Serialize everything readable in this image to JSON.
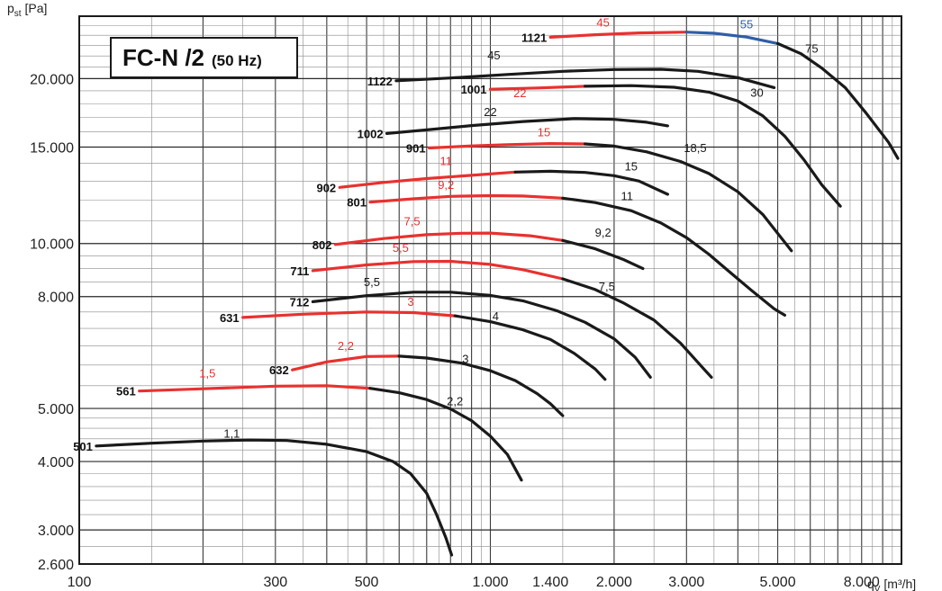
{
  "chart_data": {
    "type": "line",
    "title": "FC-N /2",
    "subtitle": "(50 Hz)",
    "xlabel": "q",
    "xlabel_sub": "V",
    "xlabel_unit": " [m³/h]",
    "ylabel": "p",
    "ylabel_sub": "st",
    "ylabel_unit": " [Pa]",
    "x_scale": "log",
    "y_scale": "log",
    "xlim": [
      100,
      10000
    ],
    "ylim": [
      2600,
      26000
    ],
    "grid": true,
    "x_ticks": [
      {
        "v": 100,
        "t": "100"
      },
      {
        "v": 300,
        "t": "300"
      },
      {
        "v": 500,
        "t": "500"
      },
      {
        "v": 1000,
        "t": "1.000"
      },
      {
        "v": 1400,
        "t": "1.400"
      },
      {
        "v": 2000,
        "t": "2.000"
      },
      {
        "v": 3000,
        "t": "3.000"
      },
      {
        "v": 5000,
        "t": "5.000"
      },
      {
        "v": 8000,
        "t": "8.000"
      }
    ],
    "y_ticks": [
      {
        "v": 2600,
        "t": "2.600"
      },
      {
        "v": 3000,
        "t": "3.000"
      },
      {
        "v": 4000,
        "t": "4.000"
      },
      {
        "v": 5000,
        "t": "5.000"
      },
      {
        "v": 8000,
        "t": "8.000"
      },
      {
        "v": 10000,
        "t": "10.000"
      },
      {
        "v": 15000,
        "t": "15.000"
      },
      {
        "v": 20000,
        "t": "20.000"
      }
    ],
    "colors": {
      "red": "#e8312f",
      "black": "#1a1a1a",
      "blue": "#2f5ea8"
    },
    "series": [
      {
        "name": "501",
        "points": [
          [
            110,
            4270
          ],
          [
            150,
            4320
          ],
          [
            200,
            4360
          ],
          [
            260,
            4380
          ],
          [
            320,
            4370
          ],
          [
            400,
            4300
          ],
          [
            500,
            4170
          ],
          [
            580,
            4000
          ],
          [
            640,
            3800
          ],
          [
            700,
            3500
          ],
          [
            740,
            3200
          ],
          [
            780,
            2900
          ],
          [
            805,
            2700
          ]
        ],
        "segments": [
          {
            "from": 0,
            "to": 12,
            "color": "black"
          }
        ],
        "motors": [
          {
            "t": "1,1",
            "x": 235,
            "y": 4420,
            "color": "black"
          }
        ]
      },
      {
        "name": "561",
        "points": [
          [
            140,
            5380
          ],
          [
            200,
            5430
          ],
          [
            300,
            5490
          ],
          [
            400,
            5500
          ],
          [
            510,
            5440
          ],
          [
            600,
            5340
          ],
          [
            700,
            5190
          ],
          [
            800,
            4990
          ],
          [
            900,
            4750
          ],
          [
            1000,
            4450
          ],
          [
            1100,
            4120
          ],
          [
            1190,
            3700
          ]
        ],
        "segments": [
          {
            "from": 0,
            "to": 4,
            "color": "red"
          },
          {
            "from": 4,
            "to": 11,
            "color": "black"
          }
        ],
        "motors": [
          {
            "t": "1,5",
            "x": 205,
            "y": 5700,
            "color": "red"
          },
          {
            "t": "2,2",
            "x": 820,
            "y": 5070,
            "color": "black"
          }
        ]
      },
      {
        "name": "632",
        "points": [
          [
            330,
            5880
          ],
          [
            400,
            6080
          ],
          [
            500,
            6220
          ],
          [
            600,
            6230
          ],
          [
            700,
            6180
          ],
          [
            850,
            6050
          ],
          [
            1000,
            5860
          ],
          [
            1150,
            5620
          ],
          [
            1300,
            5320
          ],
          [
            1400,
            5100
          ],
          [
            1500,
            4850
          ]
        ],
        "segments": [
          {
            "from": 0,
            "to": 3,
            "color": "red"
          },
          {
            "from": 3,
            "to": 10,
            "color": "black"
          }
        ],
        "motors": [
          {
            "t": "2,2",
            "x": 445,
            "y": 6400,
            "color": "red"
          },
          {
            "t": "3",
            "x": 870,
            "y": 6050,
            "color": "black"
          }
        ]
      },
      {
        "name": "631",
        "points": [
          [
            250,
            7330
          ],
          [
            350,
            7430
          ],
          [
            500,
            7500
          ],
          [
            650,
            7480
          ],
          [
            820,
            7380
          ],
          [
            1000,
            7200
          ],
          [
            1200,
            6960
          ],
          [
            1400,
            6680
          ],
          [
            1600,
            6300
          ],
          [
            1800,
            5900
          ],
          [
            1900,
            5650
          ]
        ],
        "segments": [
          {
            "from": 0,
            "to": 4,
            "color": "red"
          },
          {
            "from": 4,
            "to": 10,
            "color": "black"
          }
        ],
        "motors": [
          {
            "t": "3",
            "x": 640,
            "y": 7700,
            "color": "red"
          },
          {
            "t": "4",
            "x": 1030,
            "y": 7250,
            "color": "black"
          }
        ]
      },
      {
        "name": "712",
        "points": [
          [
            370,
            7830
          ],
          [
            500,
            8030
          ],
          [
            650,
            8150
          ],
          [
            800,
            8150
          ],
          [
            1000,
            8040
          ],
          [
            1200,
            7860
          ],
          [
            1450,
            7540
          ],
          [
            1700,
            7180
          ],
          [
            2000,
            6700
          ],
          [
            2250,
            6200
          ],
          [
            2450,
            5700
          ]
        ],
        "segments": [
          {
            "from": 0,
            "to": 10,
            "color": "black"
          }
        ],
        "motors": [
          {
            "t": "5,5",
            "x": 515,
            "y": 8360,
            "color": "black"
          }
        ]
      },
      {
        "name": "711",
        "points": [
          [
            370,
            8920
          ],
          [
            500,
            9140
          ],
          [
            650,
            9270
          ],
          [
            800,
            9280
          ],
          [
            1000,
            9160
          ],
          [
            1200,
            8960
          ],
          [
            1500,
            8620
          ],
          [
            1800,
            8240
          ],
          [
            2100,
            7800
          ],
          [
            2500,
            7250
          ],
          [
            2900,
            6580
          ],
          [
            3300,
            5910
          ],
          [
            3450,
            5700
          ]
        ],
        "segments": [
          {
            "from": 0,
            "to": 6,
            "color": "red"
          },
          {
            "from": 6,
            "to": 12,
            "color": "black"
          }
        ],
        "motors": [
          {
            "t": "5,5",
            "x": 605,
            "y": 9650,
            "color": "red"
          },
          {
            "t": "7,5",
            "x": 1920,
            "y": 8200,
            "color": "black"
          }
        ]
      },
      {
        "name": "802",
        "points": [
          [
            420,
            9960
          ],
          [
            550,
            10210
          ],
          [
            700,
            10380
          ],
          [
            850,
            10440
          ],
          [
            1000,
            10450
          ],
          [
            1250,
            10330
          ],
          [
            1500,
            10130
          ],
          [
            1800,
            9780
          ],
          [
            2100,
            9360
          ],
          [
            2350,
            9000
          ]
        ],
        "segments": [
          {
            "from": 0,
            "to": 6,
            "color": "red"
          },
          {
            "from": 6,
            "to": 9,
            "color": "black"
          }
        ],
        "motors": [
          {
            "t": "7,5",
            "x": 645,
            "y": 10800,
            "color": "red"
          },
          {
            "t": "9,2",
            "x": 1880,
            "y": 10300,
            "color": "black"
          }
        ]
      },
      {
        "name": "801",
        "points": [
          [
            510,
            11900
          ],
          [
            650,
            12070
          ],
          [
            800,
            12190
          ],
          [
            1000,
            12230
          ],
          [
            1200,
            12210
          ],
          [
            1500,
            12100
          ],
          [
            1800,
            11880
          ],
          [
            2200,
            11480
          ],
          [
            2600,
            10900
          ],
          [
            3000,
            10250
          ],
          [
            3400,
            9560
          ],
          [
            3800,
            8900
          ],
          [
            4300,
            8230
          ],
          [
            4900,
            7600
          ],
          [
            5200,
            7400
          ]
        ],
        "segments": [
          {
            "from": 0,
            "to": 5,
            "color": "red"
          },
          {
            "from": 5,
            "to": 14,
            "color": "black"
          }
        ],
        "motors": [
          {
            "t": "9,2",
            "x": 780,
            "y": 12580,
            "color": "red"
          },
          {
            "t": "11",
            "x": 2150,
            "y": 12000,
            "color": "black"
          }
        ]
      },
      {
        "name": "902",
        "points": [
          [
            430,
            12660
          ],
          [
            550,
            12930
          ],
          [
            700,
            13140
          ],
          [
            900,
            13320
          ],
          [
            1150,
            13500
          ],
          [
            1400,
            13550
          ],
          [
            1700,
            13480
          ],
          [
            2000,
            13300
          ],
          [
            2300,
            13000
          ],
          [
            2700,
            12300
          ]
        ],
        "segments": [
          {
            "from": 0,
            "to": 4,
            "color": "red"
          },
          {
            "from": 4,
            "to": 9,
            "color": "black"
          }
        ],
        "motors": [
          {
            "t": "11",
            "x": 780,
            "y": 13900,
            "color": "red"
          },
          {
            "t": "15",
            "x": 2200,
            "y": 13600,
            "color": "black"
          }
        ]
      },
      {
        "name": "901",
        "points": [
          [
            710,
            14940
          ],
          [
            900,
            15070
          ],
          [
            1100,
            15150
          ],
          [
            1400,
            15220
          ],
          [
            1700,
            15200
          ],
          [
            2000,
            15060
          ],
          [
            2400,
            14700
          ],
          [
            2900,
            14120
          ],
          [
            3400,
            13420
          ],
          [
            4000,
            12430
          ],
          [
            4600,
            11300
          ],
          [
            5200,
            10050
          ],
          [
            5400,
            9700
          ]
        ],
        "segments": [
          {
            "from": 0,
            "to": 4,
            "color": "red"
          },
          {
            "from": 4,
            "to": 12,
            "color": "black"
          }
        ],
        "motors": [
          {
            "t": "15",
            "x": 1350,
            "y": 15700,
            "color": "red"
          },
          {
            "t": "18,5",
            "x": 3150,
            "y": 14700,
            "color": "black"
          }
        ]
      },
      {
        "name": "1002",
        "points": [
          [
            560,
            15880
          ],
          [
            700,
            16120
          ],
          [
            900,
            16420
          ],
          [
            1200,
            16700
          ],
          [
            1600,
            16900
          ],
          [
            2000,
            16850
          ],
          [
            2400,
            16650
          ],
          [
            2700,
            16400
          ]
        ],
        "segments": [
          {
            "from": 0,
            "to": 7,
            "color": "black"
          }
        ],
        "motors": [
          {
            "t": "22",
            "x": 1000,
            "y": 17100,
            "color": "black"
          }
        ]
      },
      {
        "name": "1001",
        "points": [
          [
            1000,
            19130
          ],
          [
            1300,
            19230
          ],
          [
            1700,
            19370
          ],
          [
            2200,
            19420
          ],
          [
            2800,
            19290
          ],
          [
            3400,
            18900
          ],
          [
            4000,
            18200
          ],
          [
            4600,
            17100
          ],
          [
            5200,
            15700
          ],
          [
            5800,
            14200
          ],
          [
            6400,
            12800
          ],
          [
            7100,
            11700
          ]
        ],
        "segments": [
          {
            "from": 0,
            "to": 2,
            "color": "red"
          },
          {
            "from": 2,
            "to": 11,
            "color": "black"
          }
        ],
        "motors": [
          {
            "t": "22",
            "x": 1180,
            "y": 18500,
            "color": "red"
          },
          {
            "t": "30",
            "x": 4450,
            "y": 18550,
            "color": "black"
          }
        ]
      },
      {
        "name": "1122",
        "points": [
          [
            590,
            19820
          ],
          [
            800,
            20050
          ],
          [
            1100,
            20350
          ],
          [
            1500,
            20620
          ],
          [
            2000,
            20780
          ],
          [
            2600,
            20800
          ],
          [
            3200,
            20620
          ],
          [
            4000,
            20080
          ],
          [
            4900,
            19260
          ]
        ],
        "segments": [
          {
            "from": 0,
            "to": 8,
            "color": "black"
          }
        ],
        "motors": [
          {
            "t": "45",
            "x": 1020,
            "y": 21700,
            "color": "black"
          }
        ]
      },
      {
        "name": "1121",
        "points": [
          [
            1400,
            23800
          ],
          [
            1800,
            24050
          ],
          [
            2300,
            24230
          ],
          [
            3000,
            24320
          ],
          [
            3500,
            24200
          ],
          [
            4200,
            23820
          ],
          [
            5000,
            23180
          ],
          [
            5700,
            22200
          ],
          [
            6400,
            20900
          ],
          [
            7300,
            19250
          ],
          [
            8200,
            17300
          ],
          [
            9300,
            15300
          ],
          [
            9800,
            14300
          ]
        ],
        "segments": [
          {
            "from": 0,
            "to": 3,
            "color": "red"
          },
          {
            "from": 3,
            "to": 6,
            "color": "blue"
          },
          {
            "from": 6,
            "to": 12,
            "color": "black"
          }
        ],
        "motors": [
          {
            "t": "45",
            "x": 1880,
            "y": 24900,
            "color": "red"
          },
          {
            "t": "55",
            "x": 4200,
            "y": 24700,
            "color": "blue"
          },
          {
            "t": "75",
            "x": 6050,
            "y": 22300,
            "color": "black"
          }
        ]
      }
    ]
  }
}
